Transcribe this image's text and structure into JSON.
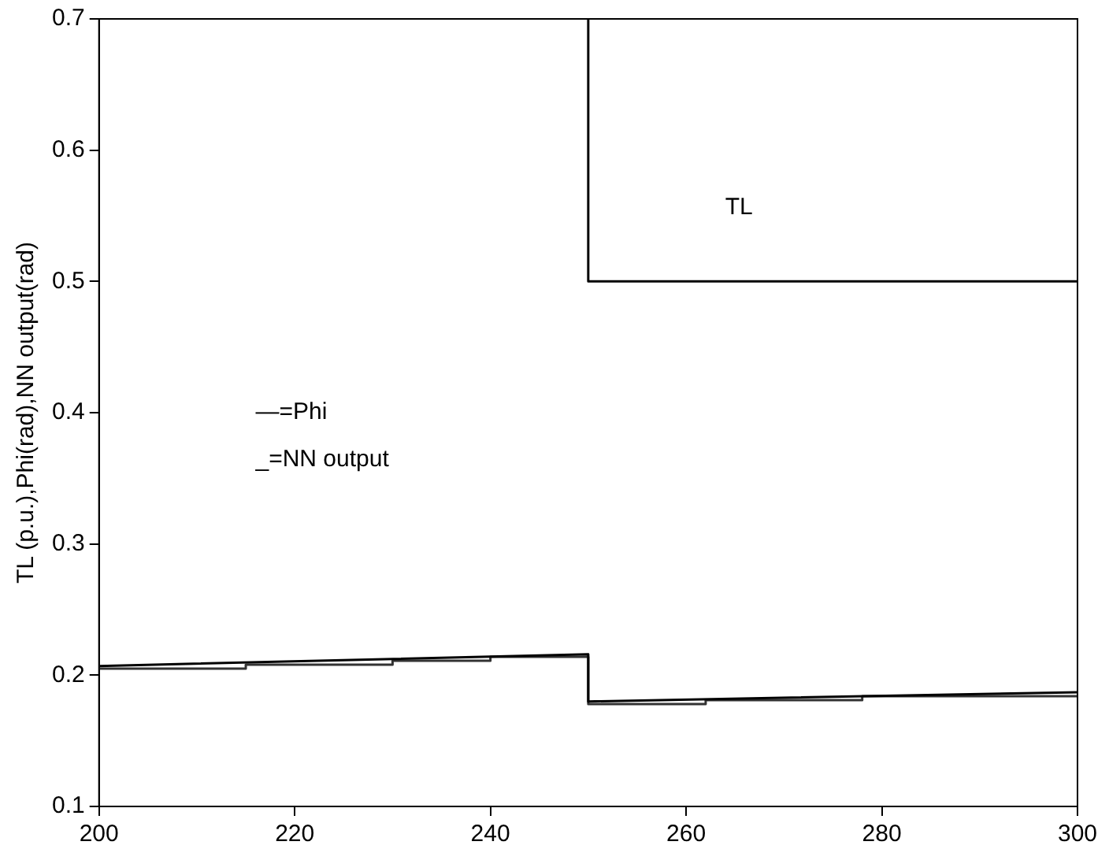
{
  "chart_data": {
    "type": "line",
    "ylabel": "TL (p.u.),Phi(rad),NN output(rad)",
    "xlim": [
      200,
      300
    ],
    "ylim": [
      0.1,
      0.7
    ],
    "xticks": [
      200,
      220,
      240,
      260,
      280,
      300
    ],
    "yticks": [
      0.1,
      0.2,
      0.3,
      0.4,
      0.5,
      0.6,
      0.7
    ],
    "grid": false,
    "legend": false,
    "marker": "none",
    "annotations": [
      "—=Phi",
      "_=NN output",
      "TL"
    ],
    "series": [
      {
        "type": "step",
        "color": "#000000",
        "x": [
          250,
          250,
          300
        ],
        "values": [
          0.7,
          0.5,
          0.5
        ]
      },
      {
        "type": "line",
        "color": "#000000",
        "x": [
          200,
          250,
          250,
          300
        ],
        "values": [
          0.207,
          0.216,
          0.18,
          0.187
        ]
      },
      {
        "type": "step",
        "color": "#333333",
        "x": [
          200,
          215,
          230,
          240,
          250,
          262,
          278,
          300
        ],
        "values": [
          0.205,
          0.208,
          0.211,
          0.214,
          0.178,
          0.181,
          0.184,
          0.184
        ]
      }
    ]
  }
}
